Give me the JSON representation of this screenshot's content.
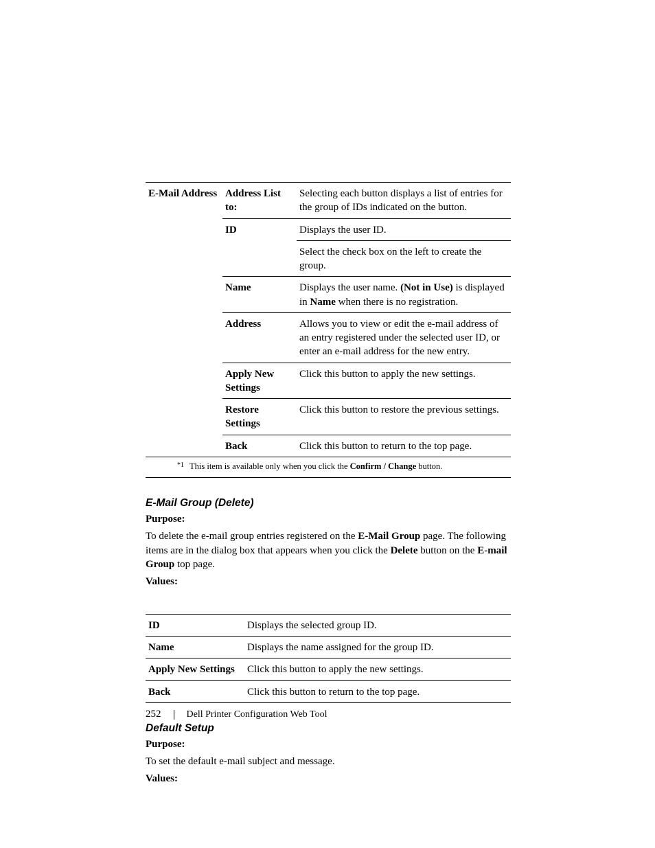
{
  "table1": {
    "col_a": "E-Mail Address",
    "rows": [
      {
        "b": "Address List to:",
        "c_parts": [
          [
            "Selecting each button displays a list of entries for the group of IDs indicated on the button.",
            false
          ]
        ]
      },
      {
        "b": "ID",
        "c_parts": [
          [
            "Displays the user ID.",
            false
          ]
        ],
        "extra": [
          [
            "Select the check box on the left to create the group.",
            false
          ]
        ]
      },
      {
        "b": "Name",
        "c_parts": [
          [
            "Displays the user name. ",
            false
          ],
          [
            "(Not in Use)",
            true
          ],
          [
            " is displayed in ",
            false
          ],
          [
            "Name",
            true
          ],
          [
            " when there is no registration.",
            false
          ]
        ]
      },
      {
        "b": "Address",
        "c_parts": [
          [
            "Allows you to view or edit the e-mail address of an entry registered under the selected user ID, or enter an e-mail address for the new entry.",
            false
          ]
        ]
      },
      {
        "b": "Apply New Settings",
        "c_parts": [
          [
            "Click this button to apply the new settings.",
            false
          ]
        ]
      },
      {
        "b": "Restore Settings",
        "c_parts": [
          [
            "Click this button to restore the previous settings.",
            false
          ]
        ]
      },
      {
        "b": "Back",
        "c_parts": [
          [
            "Click this button to return to the top page.",
            false
          ]
        ]
      }
    ]
  },
  "footnote": {
    "marker": "*1",
    "text_parts": [
      [
        "This item is available only when you click the ",
        false
      ],
      [
        "Confirm / Change",
        true
      ],
      [
        " button.",
        false
      ]
    ]
  },
  "section1": {
    "heading": "E-Mail Group (Delete)",
    "purpose_label": "Purpose:",
    "purpose_text_parts": [
      [
        "To delete the e-mail group entries registered on the ",
        false
      ],
      [
        "E-Mail Group",
        true
      ],
      [
        " page. The following items are in the dialog box that appears when you click the ",
        false
      ],
      [
        "Delete",
        true
      ],
      [
        " button on the ",
        false
      ],
      [
        "E-mail Group",
        true
      ],
      [
        " top page.",
        false
      ]
    ],
    "values_label": "Values:"
  },
  "table2": {
    "rows": [
      {
        "a": "ID",
        "b": "Displays the selected group ID."
      },
      {
        "a": "Name",
        "b": "Displays the name assigned for the group ID."
      },
      {
        "a": "Apply New Settings",
        "b": "Click this button to apply the new settings."
      },
      {
        "a": "Back",
        "b": "Click this button to return to the top page."
      }
    ]
  },
  "section2": {
    "heading": "Default Setup",
    "purpose_label": "Purpose:",
    "purpose_text": "To set the default e-mail subject and message.",
    "values_label": "Values:"
  },
  "footer": {
    "page": "252",
    "title": "Dell Printer Configuration Web Tool"
  }
}
